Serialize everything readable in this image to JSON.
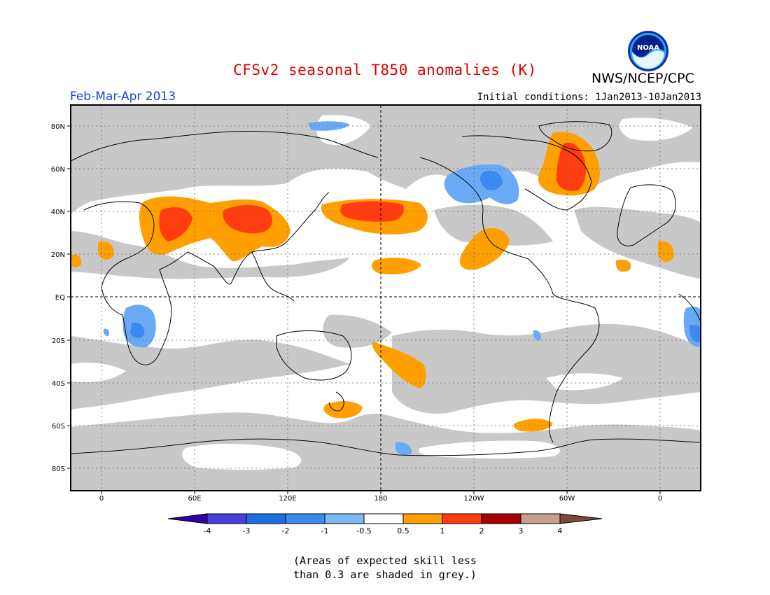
{
  "header": {
    "title": "CFSv2 seasonal T850 anomalies (K)",
    "agency": "NWS/NCEP/CPC",
    "logo_text": "NOAA",
    "season": "Feb-Mar-Apr 2013",
    "initial_conditions": "Initial conditions: 1Jan2013-10Jan2013"
  },
  "map": {
    "lat_labels": [
      "80N",
      "60N",
      "40N",
      "20N",
      "EQ",
      "20S",
      "40S",
      "60S",
      "80S"
    ],
    "lon_labels": [
      "0",
      "60E",
      "120E",
      "180",
      "120W",
      "60W",
      "0"
    ],
    "colors": {
      "grey": "#c8c8c8",
      "pos_05_1": "#ff9f00",
      "pos_1_2": "#ff3d10",
      "neg_1_05": "#6aaaf5",
      "neg_2_1": "#3a8af0"
    }
  },
  "colorbar": {
    "labels": [
      "-4",
      "-3",
      "-2",
      "-1",
      "-0.5",
      "0.5",
      "1",
      "2",
      "3",
      "4"
    ],
    "colors": [
      "#3000a8",
      "#4a3fd8",
      "#1e6fde",
      "#3a8af0",
      "#7db9f5",
      "#ffffff",
      "#ff9f00",
      "#ff3d10",
      "#a80000",
      "#c8a08c",
      "#7d4a3a"
    ]
  },
  "footnote": {
    "line1": "(Areas of expected skill less",
    "line2": "than 0.3 are shaded in grey.)"
  }
}
